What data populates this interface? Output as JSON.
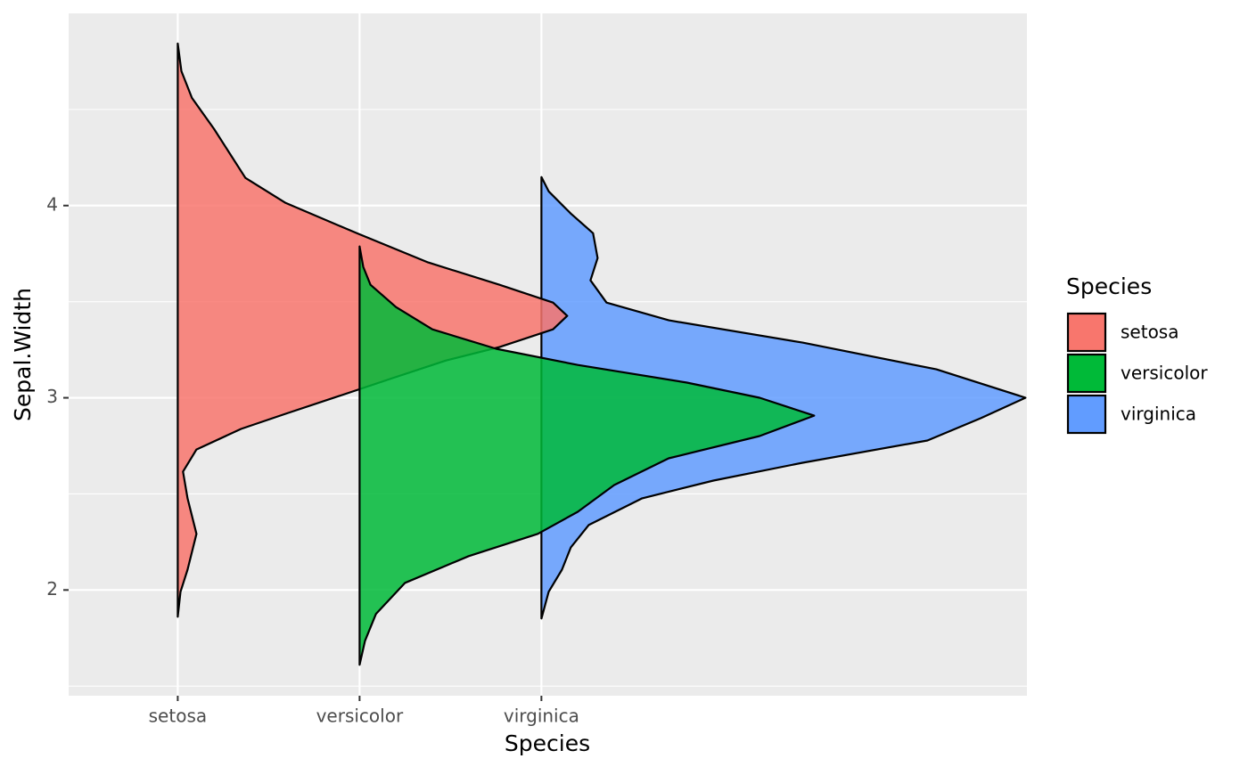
{
  "chart_data": {
    "type": "half-violin",
    "x_label": "Species",
    "y_label": "Sepal.Width",
    "legend_title": "Species",
    "categories": [
      "setosa",
      "versicolor",
      "virginica"
    ],
    "xlim": [
      0.4,
      5.67
    ],
    "ylim": [
      1.45,
      5.0
    ],
    "yticks": [
      2,
      3,
      4
    ],
    "y_minor_ticks": [
      1.5,
      2.5,
      3.5,
      4.5
    ],
    "grid": true,
    "legend_position": "right",
    "series": [
      {
        "name": "setosa",
        "color": "#F8766D",
        "y": [
          4.843,
          4.699,
          4.56,
          4.398,
          4.144,
          4.014,
          3.856,
          3.704,
          3.588,
          3.495,
          3.426,
          3.356,
          3.264,
          3.194,
          3.102,
          3.009,
          2.917,
          2.838,
          2.731,
          2.616,
          2.477,
          2.292,
          2.106,
          1.991,
          1.861
        ],
        "width": [
          0,
          0.02,
          0.078,
          0.2,
          0.372,
          0.593,
          0.985,
          1.377,
          1.77,
          2.064,
          2.142,
          2.064,
          1.77,
          1.475,
          1.181,
          0.887,
          0.593,
          0.348,
          0.103,
          0.029,
          0.054,
          0.103,
          0.054,
          0.015,
          0
        ]
      },
      {
        "name": "versicolor",
        "color": "#00BA38",
        "y": [
          3.787,
          3.681,
          3.588,
          3.472,
          3.356,
          3.255,
          3.171,
          3.079,
          3.0,
          2.907,
          2.801,
          2.685,
          2.546,
          2.407,
          2.292,
          2.176,
          2.037,
          1.875,
          1.736,
          1.611
        ],
        "width": [
          0,
          0.02,
          0.06,
          0.2,
          0.4,
          0.75,
          1.2,
          1.8,
          2.2,
          2.5,
          2.2,
          1.7,
          1.4,
          1.2,
          0.98,
          0.6,
          0.25,
          0.09,
          0.03,
          0
        ]
      },
      {
        "name": "virginica",
        "color": "#619CFF",
        "y": [
          4.148,
          4.074,
          3.958,
          3.856,
          3.727,
          3.611,
          3.495,
          3.403,
          3.287,
          3.148,
          3.0,
          2.894,
          2.778,
          2.662,
          2.569,
          2.477,
          2.338,
          2.222,
          2.106,
          1.991,
          1.852
        ],
        "width": [
          0,
          0.04,
          0.162,
          0.284,
          0.309,
          0.27,
          0.358,
          0.701,
          1.436,
          2.172,
          2.662,
          2.417,
          2.123,
          1.436,
          0.946,
          0.554,
          0.26,
          0.162,
          0.113,
          0.04,
          0
        ]
      }
    ]
  }
}
